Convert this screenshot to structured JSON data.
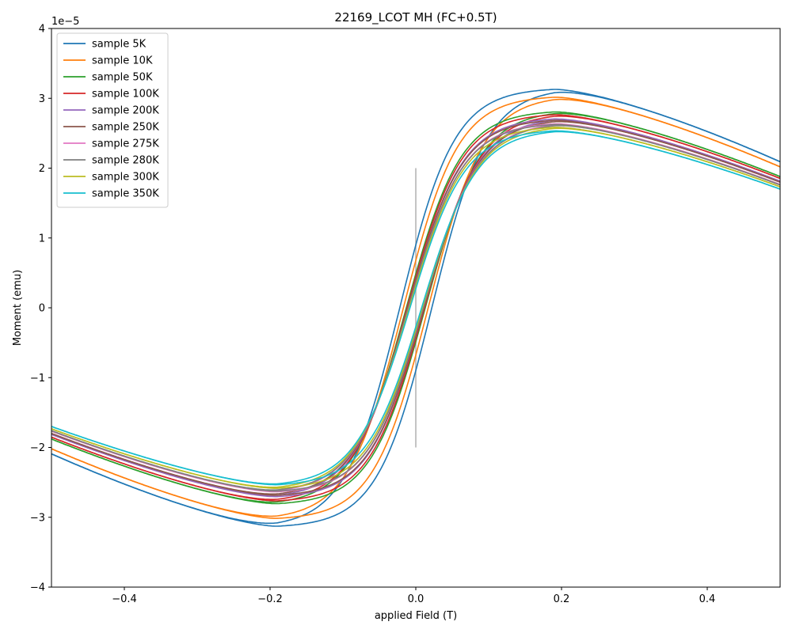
{
  "chart_data": {
    "type": "line",
    "title": "22169_LCOT MH (FC+0.5T)",
    "xlabel": "applied Field (T)",
    "ylabel": "Moment (emu)",
    "y_offset_label": "1e−5",
    "xlim": [
      -0.5,
      0.5
    ],
    "ylim": [
      -4,
      4
    ],
    "xticks": [
      -0.4,
      -0.2,
      0.0,
      0.2,
      0.4
    ],
    "xtick_labels": [
      "−0.4",
      "−0.2",
      "0.0",
      "0.2",
      "0.4"
    ],
    "yticks": [
      -4,
      -3,
      -2,
      -1,
      0,
      1,
      2,
      3,
      4
    ],
    "ytick_labels": [
      "−4",
      "−3",
      "−2",
      "−1",
      "0",
      "1",
      "2",
      "3",
      "4"
    ],
    "grid": false,
    "legend_position": "top-left",
    "reference_line": {
      "x": 0.0,
      "y": [
        -2,
        2
      ],
      "color": "#b0b0b0"
    },
    "series": [
      {
        "name": "sample 5K",
        "color": "#1f77b4",
        "m_max": 3.15,
        "hc": 0.022
      },
      {
        "name": "sample 10K",
        "color": "#ff7f0e",
        "m_max": 3.04,
        "hc": 0.017
      },
      {
        "name": "sample 50K",
        "color": "#2ca02c",
        "m_max": 2.83,
        "hc": 0.013
      },
      {
        "name": "sample 100K",
        "color": "#d62728",
        "m_max": 2.79,
        "hc": 0.012
      },
      {
        "name": "sample 200K",
        "color": "#9467bd",
        "m_max": 2.73,
        "hc": 0.011
      },
      {
        "name": "sample 250K",
        "color": "#8c564b",
        "m_max": 2.71,
        "hc": 0.011
      },
      {
        "name": "sample 275K",
        "color": "#e377c2",
        "m_max": 2.66,
        "hc": 0.01
      },
      {
        "name": "sample 280K",
        "color": "#7f7f7f",
        "m_max": 2.65,
        "hc": 0.01
      },
      {
        "name": "sample 300K",
        "color": "#bcbd22",
        "m_max": 2.61,
        "hc": 0.009
      },
      {
        "name": "sample 350K",
        "color": "#17becf",
        "m_max": 2.56,
        "hc": 0.008
      }
    ]
  }
}
